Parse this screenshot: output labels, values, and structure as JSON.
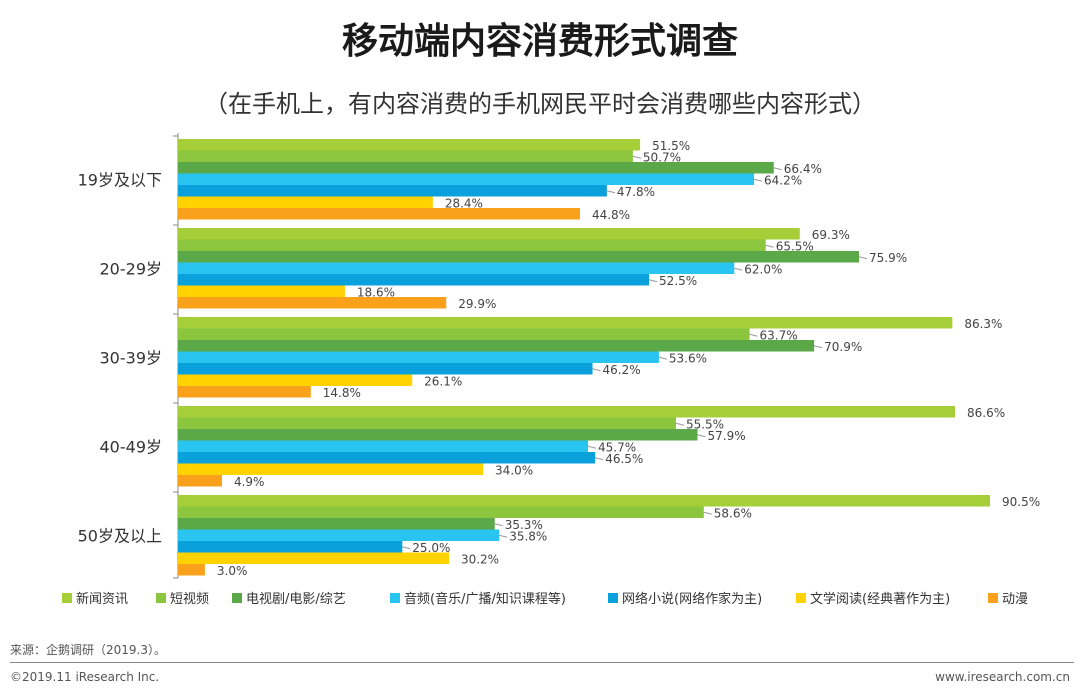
{
  "title": "移动端内容消费形式调查",
  "subtitle": "（在手机上，有内容消费的手机网民平时会消费哪些内容形式）",
  "chart_data": {
    "type": "bar",
    "orientation": "horizontal",
    "title": "移动端内容消费形式调查",
    "subtitle": "（在手机上，有内容消费的手机网民平时会消费哪些内容形式）",
    "categories": [
      "19岁及以下",
      "20-29岁",
      "30-39岁",
      "40-49岁",
      "50岁及以上"
    ],
    "series": [
      {
        "name": "新闻资讯",
        "color": "#A6CE39",
        "values": [
          51.5,
          69.3,
          86.3,
          86.6,
          90.5
        ],
        "labels": [
          "51.5%",
          "69.3%",
          "86.3%",
          "86.6%",
          "90.5%"
        ]
      },
      {
        "name": "短视频",
        "color": "#8CC63F",
        "values": [
          50.7,
          65.5,
          63.7,
          55.5,
          58.6
        ],
        "labels": [
          "50.7%",
          "65.5%",
          "63.7%",
          "55.5%",
          "58.6%"
        ]
      },
      {
        "name": "电视剧/电影/综艺",
        "color": "#5BA849",
        "values": [
          66.4,
          75.9,
          70.9,
          57.9,
          35.3
        ],
        "labels": [
          "66.4%",
          "75.9%",
          "70.9%",
          "57.9%",
          "35.3%"
        ]
      },
      {
        "name": "音频(音乐/广播/知识课程等)",
        "color": "#29C4F0",
        "values": [
          64.2,
          62.0,
          53.6,
          45.7,
          35.8
        ],
        "labels": [
          "64.2%",
          "62.0%",
          "53.6%",
          "45.7%",
          "35.8%"
        ]
      },
      {
        "name": "网络小说(网络作家为主)",
        "color": "#0AA0DC",
        "values": [
          47.8,
          52.5,
          46.2,
          46.5,
          25.0
        ],
        "labels": [
          "47.8%",
          "52.5%",
          "46.2%",
          "46.5%",
          "25.0%"
        ]
      },
      {
        "name": "文学阅读(经典著作为主)",
        "color": "#FFD200",
        "values": [
          28.4,
          18.6,
          26.1,
          34.0,
          30.2
        ],
        "labels": [
          "28.4%",
          "18.6%",
          "26.1%",
          "34.0%",
          "30.2%"
        ]
      },
      {
        "name": "动漫",
        "color": "#F9A11B",
        "values": [
          44.8,
          29.9,
          14.8,
          4.9,
          3.0
        ],
        "labels": [
          "44.8%",
          "29.9%",
          "14.8%",
          "4.9%",
          "3.0%"
        ]
      }
    ],
    "xlim": [
      0,
      100
    ],
    "xlabel": "",
    "ylabel": "",
    "grid": false,
    "legend": "bottom"
  },
  "footer": {
    "source": "来源：企鹅调研（2019.3）。",
    "copyright": "©2019.11 iResearch Inc.",
    "website": "www.iresearch.com.cn"
  }
}
